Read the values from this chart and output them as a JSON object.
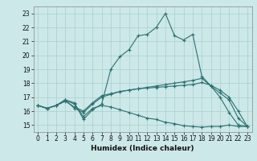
{
  "xlabel": "Humidex (Indice chaleur)",
  "ylabel": "",
  "xlim": [
    -0.5,
    23.5
  ],
  "ylim": [
    14.5,
    23.5
  ],
  "yticks": [
    15,
    16,
    17,
    18,
    19,
    20,
    21,
    22,
    23
  ],
  "xticks": [
    0,
    1,
    2,
    3,
    4,
    5,
    6,
    7,
    8,
    9,
    10,
    11,
    12,
    13,
    14,
    15,
    16,
    17,
    18,
    19,
    20,
    21,
    22,
    23
  ],
  "bg_color": "#cce8e8",
  "line_color": "#2d7070",
  "grid_color": "#aacfcf",
  "lines": [
    {
      "x": [
        0,
        1,
        2,
        3,
        4,
        5,
        6,
        7,
        8,
        9,
        10,
        11,
        12,
        13,
        14,
        15,
        16,
        17,
        18,
        19,
        20,
        21,
        22,
        23
      ],
      "y": [
        16.4,
        16.2,
        16.4,
        16.8,
        16.6,
        15.4,
        16.1,
        16.5,
        19.0,
        19.9,
        20.4,
        21.4,
        21.5,
        22.0,
        23.0,
        21.4,
        21.1,
        21.5,
        18.5,
        17.8,
        17.0,
        15.9,
        15.0,
        14.9
      ]
    },
    {
      "x": [
        0,
        1,
        2,
        3,
        4,
        5,
        6,
        7,
        8,
        9,
        10,
        11,
        12,
        13,
        14,
        15,
        16,
        17,
        18,
        19,
        20,
        21,
        22,
        23
      ],
      "y": [
        16.4,
        16.2,
        16.4,
        16.8,
        16.2,
        15.9,
        16.5,
        17.0,
        17.2,
        17.4,
        17.5,
        17.6,
        17.7,
        17.8,
        17.9,
        18.0,
        18.1,
        18.2,
        18.35,
        17.8,
        17.3,
        16.8,
        15.5,
        14.9
      ]
    },
    {
      "x": [
        0,
        1,
        2,
        3,
        4,
        5,
        6,
        7,
        8,
        9,
        10,
        11,
        12,
        13,
        14,
        15,
        16,
        17,
        18,
        19,
        20,
        21,
        22,
        23
      ],
      "y": [
        16.4,
        16.2,
        16.4,
        16.7,
        16.3,
        16.0,
        16.6,
        17.1,
        17.25,
        17.4,
        17.5,
        17.6,
        17.65,
        17.7,
        17.75,
        17.8,
        17.85,
        17.9,
        18.05,
        17.85,
        17.5,
        17.0,
        16.0,
        14.9
      ]
    },
    {
      "x": [
        0,
        1,
        2,
        3,
        4,
        5,
        6,
        7,
        8,
        9,
        10,
        11,
        12,
        13,
        14,
        15,
        16,
        17,
        18,
        19,
        20,
        21,
        22,
        23
      ],
      "y": [
        16.4,
        16.2,
        16.4,
        16.8,
        16.5,
        15.6,
        16.2,
        16.4,
        16.3,
        16.1,
        15.9,
        15.7,
        15.5,
        15.4,
        15.2,
        15.1,
        14.95,
        14.9,
        14.85,
        14.9,
        14.9,
        15.0,
        14.9,
        14.9
      ]
    }
  ]
}
